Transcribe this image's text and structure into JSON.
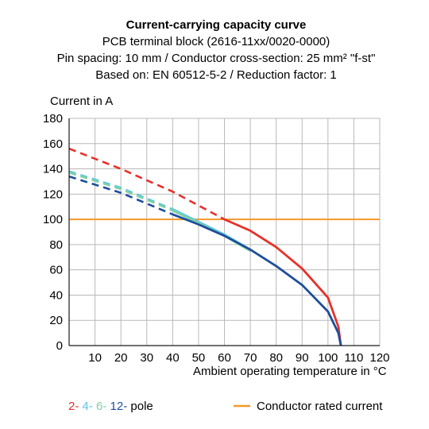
{
  "chart_data": {
    "type": "line",
    "title": "Current-carrying capacity curve",
    "subtitle_lines": [
      "PCB terminal block (2616-11xx/0020-0000)",
      "Pin spacing: 10 mm / Conductor cross-section: 25 mm² \"f-st\"",
      "Based on: EN 60512-5-2 / Reduction factor: 1"
    ],
    "ylabel": "Current in A",
    "xlabel": "Ambient operating temperature in °C",
    "xlim": [
      0,
      120
    ],
    "ylim": [
      0,
      180
    ],
    "x_ticks": [
      10,
      20,
      30,
      40,
      50,
      60,
      70,
      80,
      90,
      100,
      110,
      120
    ],
    "y_ticks": [
      0,
      20,
      40,
      60,
      80,
      100,
      120,
      140,
      160,
      180
    ],
    "grid": true,
    "series": [
      {
        "name": "2-",
        "color": "#e8312a",
        "dashed_points": [
          [
            0,
            156
          ],
          [
            20,
            140
          ],
          [
            40,
            122
          ],
          [
            60,
            100
          ]
        ],
        "solid_points": [
          [
            60,
            100
          ],
          [
            70,
            91
          ],
          [
            80,
            78
          ],
          [
            90,
            61
          ],
          [
            100,
            38
          ],
          [
            104,
            15
          ],
          [
            105,
            0
          ]
        ]
      },
      {
        "name": "4-",
        "color": "#5cc6e0",
        "dashed_points": [
          [
            0,
            138
          ],
          [
            20,
            125
          ],
          [
            40,
            108
          ]
        ],
        "solid_points": [
          [
            40,
            108
          ],
          [
            50,
            98
          ],
          [
            60,
            88
          ],
          [
            70,
            76
          ]
        ]
      },
      {
        "name": "6-",
        "color": "#7fd1a8",
        "dashed_points": [
          [
            0,
            137
          ],
          [
            20,
            124
          ],
          [
            40,
            107
          ]
        ],
        "solid_points": [
          [
            40,
            107
          ],
          [
            50,
            97
          ],
          [
            60,
            87
          ],
          [
            70,
            75
          ]
        ]
      },
      {
        "name": "12-",
        "color": "#1d4e9a",
        "dashed_points": [
          [
            0,
            134
          ],
          [
            20,
            121
          ],
          [
            40,
            104
          ]
        ],
        "solid_points": [
          [
            40,
            104
          ],
          [
            50,
            96
          ],
          [
            60,
            87
          ],
          [
            70,
            76
          ],
          [
            80,
            63
          ],
          [
            90,
            48
          ],
          [
            100,
            27
          ],
          [
            104,
            10
          ],
          [
            105,
            0
          ]
        ]
      }
    ],
    "reference_line": {
      "name": "Conductor rated current",
      "y": 100,
      "color": "#f39a2b"
    },
    "legend": {
      "placement": "bottom",
      "pole_items": [
        {
          "text": "2-",
          "color": "#e8312a"
        },
        {
          "text": "4-",
          "color": "#5cc6e0"
        },
        {
          "text": "6-",
          "color": "#7fd1a8"
        },
        {
          "text": "12-",
          "color": "#1d4e9a"
        }
      ],
      "pole_suffix": "pole",
      "rated_label": "Conductor rated current"
    }
  }
}
